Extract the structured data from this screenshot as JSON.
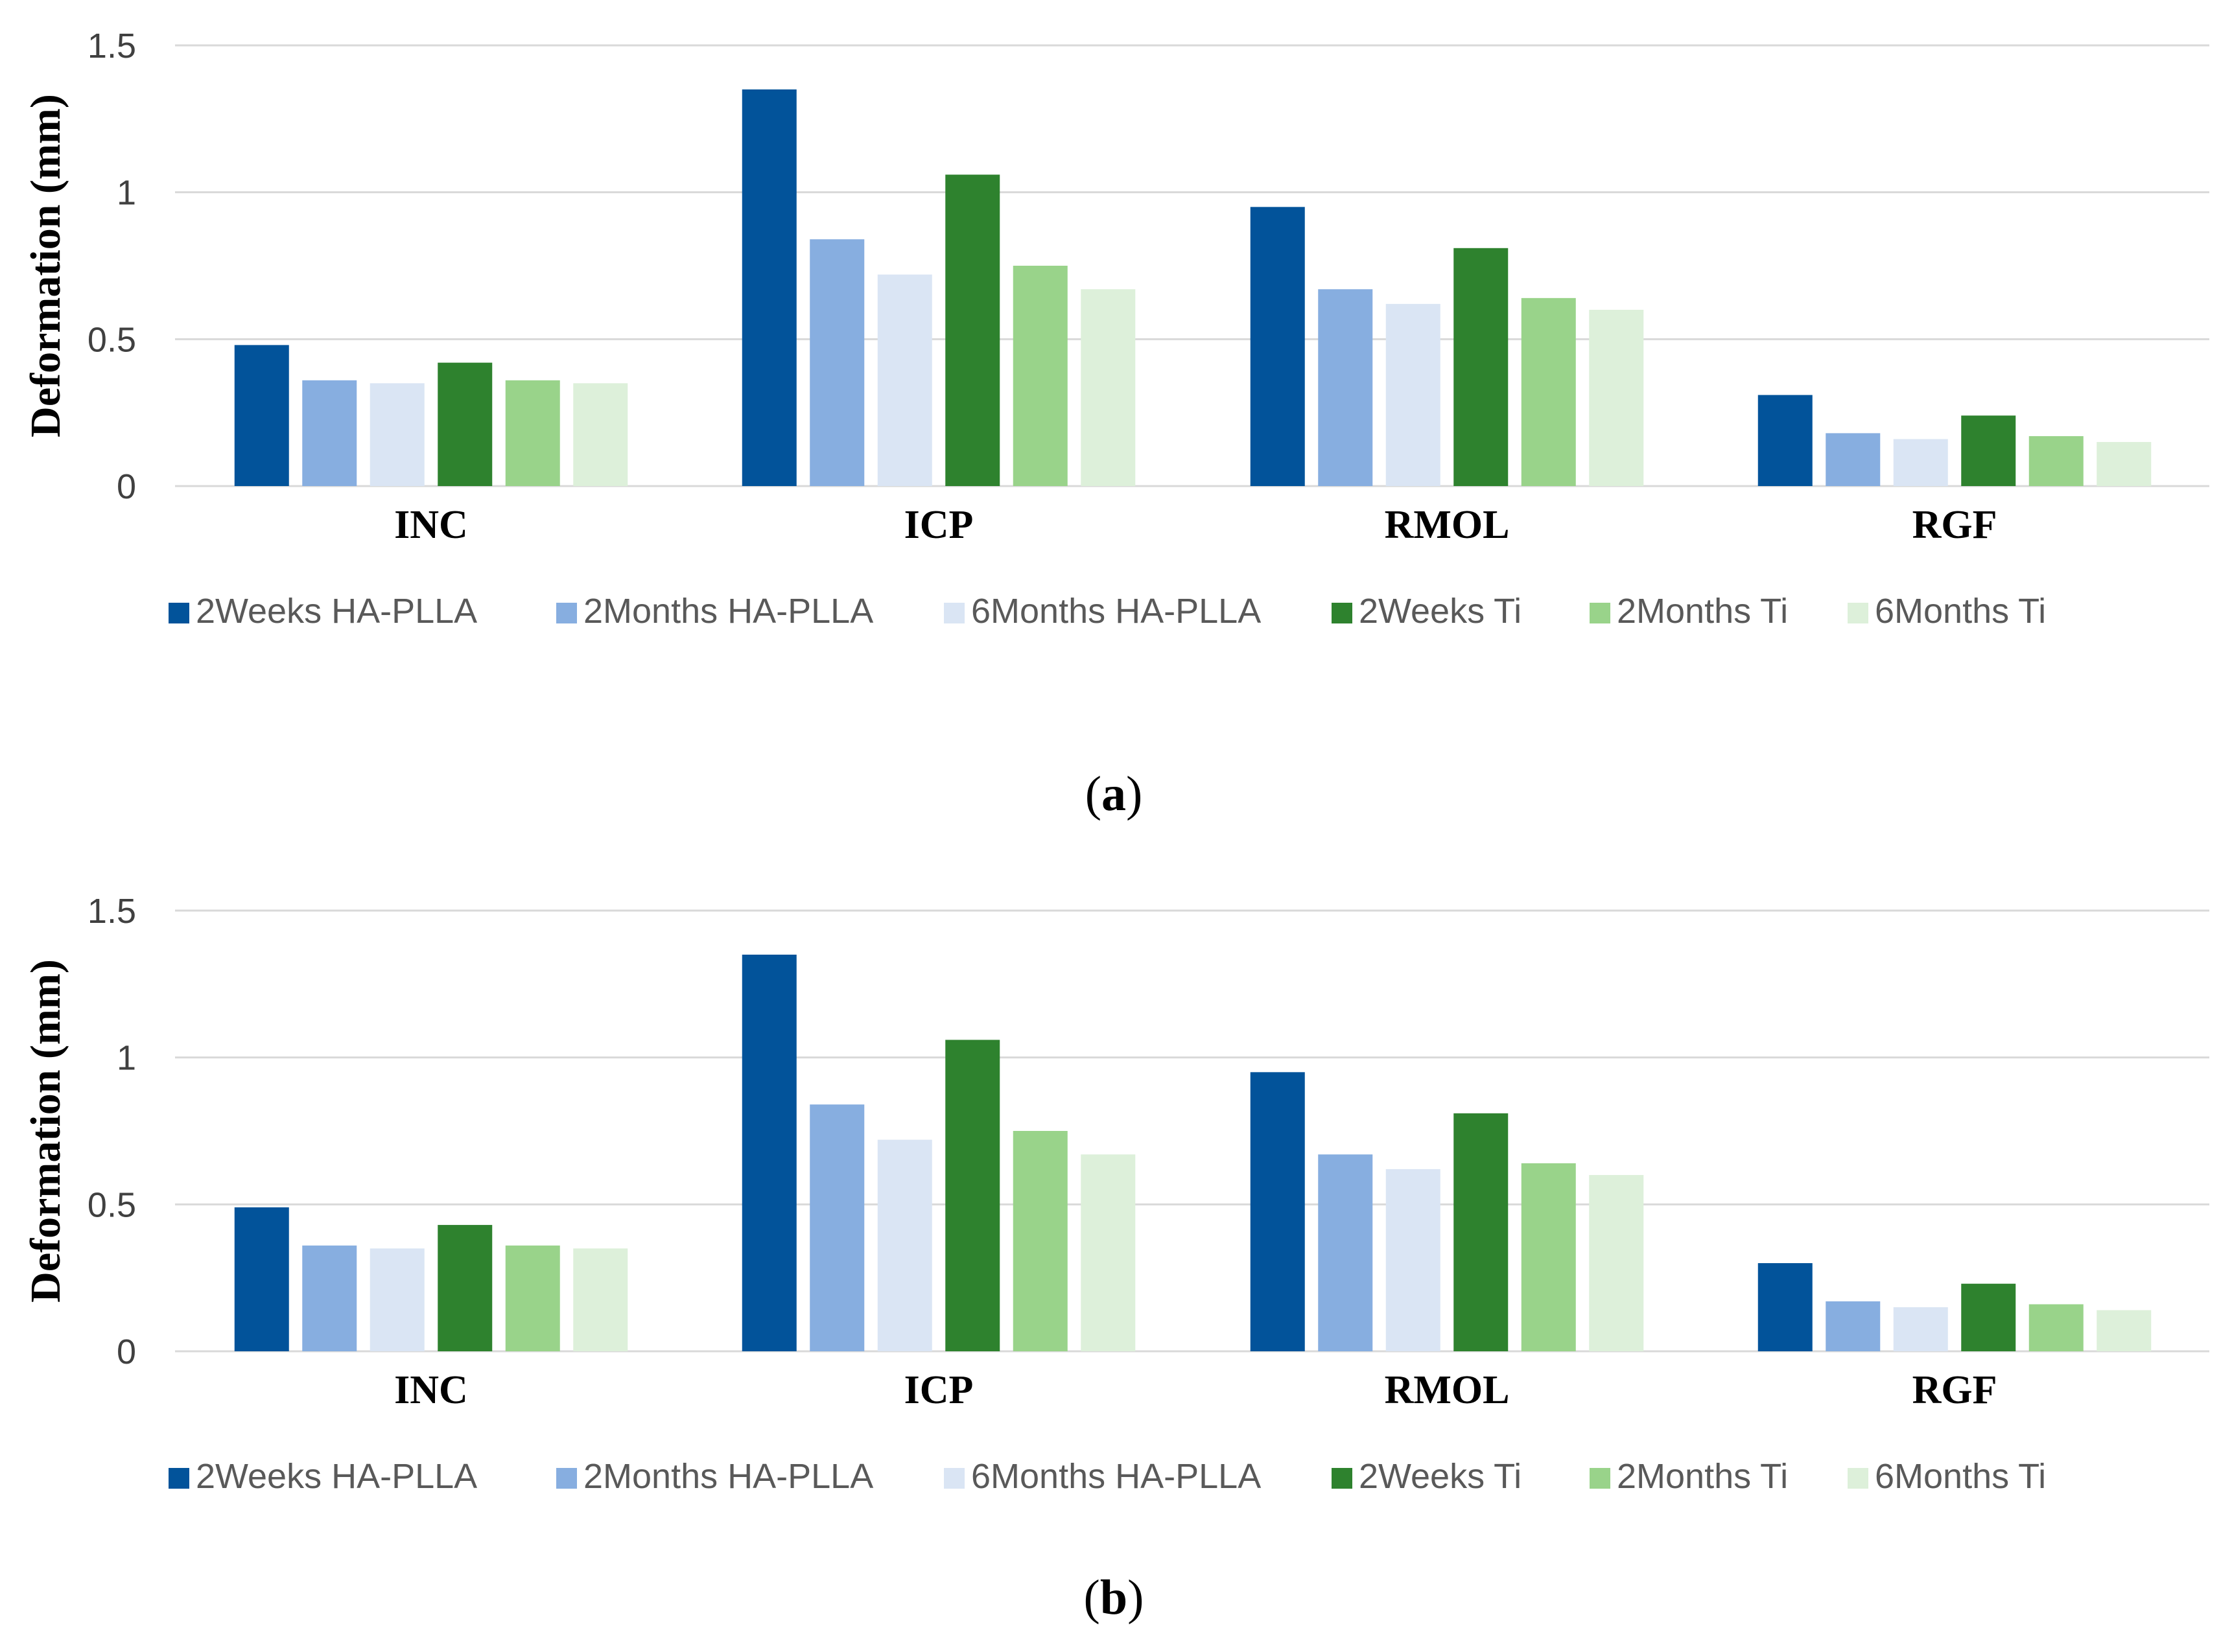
{
  "chart_data": [
    {
      "type": "bar",
      "panel": "a",
      "caption_open": "(",
      "caption_letter": "a",
      "caption_close": ")",
      "ylabel": "Deformation (mm)",
      "xlabel": "",
      "ylim": [
        0,
        1.5
      ],
      "yticks": [
        "0",
        "0.5",
        "1",
        "1.5"
      ],
      "grid": true,
      "legend_position": "bottom",
      "categories": [
        "INC",
        "ICP",
        "RMOL",
        "RGF"
      ],
      "series": [
        {
          "name": "2Weeks HA-PLLA",
          "color": "#02539a",
          "values": [
            0.48,
            1.35,
            0.95,
            0.31
          ]
        },
        {
          "name": "2Months HA-PLLA",
          "color": "#87aee0",
          "values": [
            0.36,
            0.84,
            0.67,
            0.18
          ]
        },
        {
          "name": "6Months HA-PLLA",
          "color": "#dae5f4",
          "values": [
            0.35,
            0.72,
            0.62,
            0.16
          ]
        },
        {
          "name": "2Weeks Ti",
          "color": "#2e822e",
          "values": [
            0.42,
            1.06,
            0.81,
            0.24
          ]
        },
        {
          "name": "2Months Ti",
          "color": "#99d38a",
          "values": [
            0.36,
            0.75,
            0.64,
            0.17
          ]
        },
        {
          "name": "6Months Ti",
          "color": "#ddf0da",
          "values": [
            0.35,
            0.67,
            0.6,
            0.15
          ]
        }
      ]
    },
    {
      "type": "bar",
      "panel": "b",
      "caption_open": "(",
      "caption_letter": "b",
      "caption_close": ")",
      "ylabel": "Deformation (mm)",
      "xlabel": "",
      "ylim": [
        0,
        1.5
      ],
      "yticks": [
        "0",
        "0.5",
        "1",
        "1.5"
      ],
      "grid": true,
      "legend_position": "bottom",
      "categories": [
        "INC",
        "ICP",
        "RMOL",
        "RGF"
      ],
      "series": [
        {
          "name": "2Weeks HA-PLLA",
          "color": "#02539a",
          "values": [
            0.49,
            1.35,
            0.95,
            0.3
          ]
        },
        {
          "name": "2Months HA-PLLA",
          "color": "#87aee0",
          "values": [
            0.36,
            0.84,
            0.67,
            0.17
          ]
        },
        {
          "name": "6Months HA-PLLA",
          "color": "#dae5f4",
          "values": [
            0.35,
            0.72,
            0.62,
            0.15
          ]
        },
        {
          "name": "2Weeks Ti",
          "color": "#2e822e",
          "values": [
            0.43,
            1.06,
            0.81,
            0.23
          ]
        },
        {
          "name": "2Months Ti",
          "color": "#99d38a",
          "values": [
            0.36,
            0.75,
            0.64,
            0.16
          ]
        },
        {
          "name": "6Months Ti",
          "color": "#ddf0da",
          "values": [
            0.35,
            0.67,
            0.6,
            0.14
          ]
        }
      ]
    }
  ]
}
